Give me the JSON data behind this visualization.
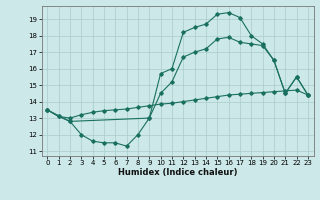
{
  "xlabel": "Humidex (Indice chaleur)",
  "xlim": [
    -0.5,
    23.5
  ],
  "ylim": [
    10.7,
    19.8
  ],
  "yticks": [
    11,
    12,
    13,
    14,
    15,
    16,
    17,
    18,
    19
  ],
  "xticks": [
    0,
    1,
    2,
    3,
    4,
    5,
    6,
    7,
    8,
    9,
    10,
    11,
    12,
    13,
    14,
    15,
    16,
    17,
    18,
    19,
    20,
    21,
    22,
    23
  ],
  "bg_color": "#cce8e8",
  "grid_color": "#aacccc",
  "line_color": "#1a7060",
  "line1_x": [
    0,
    1,
    2,
    3,
    4,
    5,
    6,
    7,
    8,
    9,
    10,
    11,
    12,
    13,
    14,
    15,
    16,
    17,
    18,
    19,
    20,
    21,
    22,
    23
  ],
  "line1_y": [
    13.5,
    13.1,
    12.8,
    12.0,
    11.6,
    11.5,
    11.5,
    11.3,
    12.0,
    13.0,
    15.7,
    16.0,
    18.2,
    18.5,
    18.7,
    19.3,
    19.4,
    19.1,
    18.0,
    17.5,
    16.5,
    14.5,
    15.5,
    14.4
  ],
  "line2_x": [
    0,
    2,
    9,
    10,
    11,
    12,
    13,
    14,
    15,
    16,
    17,
    18,
    19,
    20,
    21,
    22,
    23
  ],
  "line2_y": [
    13.5,
    12.8,
    13.0,
    14.5,
    15.2,
    16.7,
    17.0,
    17.2,
    17.8,
    17.9,
    17.6,
    17.5,
    17.4,
    16.5,
    14.5,
    15.5,
    14.4
  ],
  "line3_x": [
    0,
    1,
    2,
    3,
    4,
    5,
    6,
    7,
    8,
    9,
    10,
    11,
    12,
    13,
    14,
    15,
    16,
    17,
    18,
    19,
    20,
    21,
    22,
    23
  ],
  "line3_y": [
    13.5,
    13.1,
    13.0,
    13.2,
    13.35,
    13.45,
    13.5,
    13.55,
    13.65,
    13.75,
    13.85,
    13.9,
    14.0,
    14.1,
    14.2,
    14.3,
    14.4,
    14.45,
    14.5,
    14.55,
    14.6,
    14.65,
    14.7,
    14.4
  ]
}
